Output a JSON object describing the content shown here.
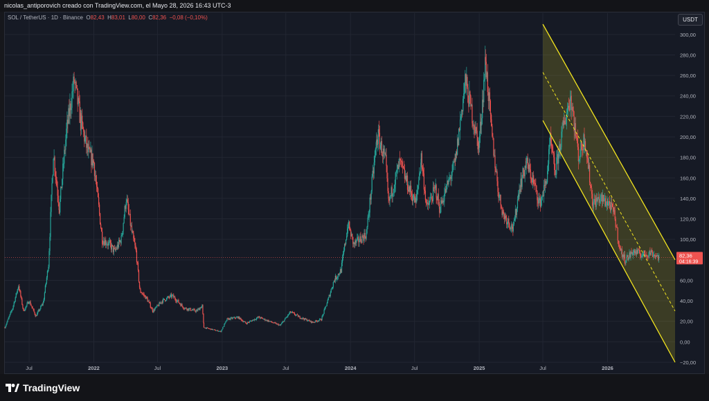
{
  "header": {
    "title": "nicolas_antiporovich creado con TradingView.com, el Mayo 28, 2026 16:43 UTC-3"
  },
  "legend": {
    "symbol": "SOL / TetherUS · 1D · Binance",
    "open_label": "O",
    "open": "82,43",
    "high_label": "H",
    "high": "83,01",
    "low_label": "L",
    "low": "80,00",
    "close_label": "C",
    "close": "82,36",
    "change": "−0,08 (−0,10%)"
  },
  "currency_button": "USDT",
  "last_price": {
    "value": "82,36",
    "countdown": "04:16:39"
  },
  "footer": {
    "brand": "TradingView"
  },
  "colors": {
    "up": "#26a69a",
    "down": "#ef5350",
    "channel": "#f2e41f",
    "background": "#161a25",
    "grid": "#222632",
    "price_line": "#ef5350"
  },
  "chart_data": {
    "type": "candlestick",
    "title": "",
    "xlabel": "",
    "ylabel": "",
    "x_range": [
      "2021-04-23",
      "2026-07-12"
    ],
    "ylim": [
      -20,
      310
    ],
    "grid": true,
    "y_ticks": [
      -20,
      0,
      20,
      40,
      60,
      80,
      100,
      120,
      140,
      160,
      180,
      200,
      220,
      240,
      260,
      280,
      300
    ],
    "y_tick_labels": [
      "−20,00",
      "0,00",
      "20,00",
      "40,00",
      "60,00",
      "80,00",
      "100,00",
      "120,00",
      "140,00",
      "160,00",
      "180,00",
      "200,00",
      "220,00",
      "240,00",
      "260,00",
      "280,00",
      "300,00"
    ],
    "x_ticks": [
      {
        "date": "2021-07-01",
        "label": "Jul",
        "bold": false
      },
      {
        "date": "2022-01-01",
        "label": "2022",
        "bold": true
      },
      {
        "date": "2022-07-01",
        "label": "Jul",
        "bold": false
      },
      {
        "date": "2023-01-01",
        "label": "2023",
        "bold": true
      },
      {
        "date": "2023-07-01",
        "label": "Jul",
        "bold": false
      },
      {
        "date": "2024-01-01",
        "label": "2024",
        "bold": true
      },
      {
        "date": "2024-07-01",
        "label": "Jul",
        "bold": false
      },
      {
        "date": "2025-01-01",
        "label": "2025",
        "bold": true
      },
      {
        "date": "2025-07-01",
        "label": "Jul",
        "bold": false
      },
      {
        "date": "2026-01-01",
        "label": "2026",
        "bold": true
      }
    ],
    "price_path": [
      [
        "2021-04-23",
        14
      ],
      [
        "2021-05-15",
        33
      ],
      [
        "2021-06-01",
        55
      ],
      [
        "2021-06-15",
        30
      ],
      [
        "2021-07-01",
        40
      ],
      [
        "2021-07-20",
        25
      ],
      [
        "2021-08-10",
        38
      ],
      [
        "2021-08-25",
        75
      ],
      [
        "2021-09-08",
        185
      ],
      [
        "2021-09-25",
        130
      ],
      [
        "2021-10-15",
        205
      ],
      [
        "2021-11-06",
        255
      ],
      [
        "2021-11-25",
        215
      ],
      [
        "2021-12-15",
        185
      ],
      [
        "2022-01-01",
        175
      ],
      [
        "2022-01-25",
        100
      ],
      [
        "2022-02-15",
        95
      ],
      [
        "2022-03-01",
        88
      ],
      [
        "2022-03-20",
        100
      ],
      [
        "2022-04-03",
        140
      ],
      [
        "2022-04-20",
        105
      ],
      [
        "2022-05-01",
        88
      ],
      [
        "2022-05-12",
        50
      ],
      [
        "2022-06-01",
        42
      ],
      [
        "2022-06-18",
        30
      ],
      [
        "2022-07-15",
        40
      ],
      [
        "2022-08-12",
        45
      ],
      [
        "2022-09-15",
        33
      ],
      [
        "2022-10-20",
        30
      ],
      [
        "2022-11-05",
        35
      ],
      [
        "2022-11-10",
        14
      ],
      [
        "2022-12-28",
        10
      ],
      [
        "2023-01-15",
        22
      ],
      [
        "2023-02-15",
        24
      ],
      [
        "2023-03-10",
        18
      ],
      [
        "2023-04-15",
        24
      ],
      [
        "2023-05-15",
        20
      ],
      [
        "2023-06-15",
        16
      ],
      [
        "2023-07-14",
        29
      ],
      [
        "2023-08-10",
        24
      ],
      [
        "2023-09-15",
        19
      ],
      [
        "2023-10-10",
        22
      ],
      [
        "2023-10-30",
        42
      ],
      [
        "2023-11-15",
        60
      ],
      [
        "2023-12-05",
        70
      ],
      [
        "2023-12-25",
        115
      ],
      [
        "2024-01-10",
        95
      ],
      [
        "2024-02-15",
        105
      ],
      [
        "2024-03-15",
        195
      ],
      [
        "2024-03-20",
        200
      ],
      [
        "2024-04-10",
        175
      ],
      [
        "2024-04-18",
        135
      ],
      [
        "2024-05-20",
        175
      ],
      [
        "2024-06-15",
        150
      ],
      [
        "2024-07-05",
        135
      ],
      [
        "2024-07-20",
        180
      ],
      [
        "2024-08-05",
        130
      ],
      [
        "2024-08-30",
        150
      ],
      [
        "2024-09-10",
        130
      ],
      [
        "2024-10-25",
        175
      ],
      [
        "2024-11-22",
        255
      ],
      [
        "2024-12-10",
        225
      ],
      [
        "2024-12-31",
        190
      ],
      [
        "2025-01-19",
        275
      ],
      [
        "2025-02-05",
        205
      ],
      [
        "2025-02-25",
        145
      ],
      [
        "2025-03-10",
        125
      ],
      [
        "2025-04-08",
        110
      ],
      [
        "2025-04-25",
        150
      ],
      [
        "2025-05-15",
        175
      ],
      [
        "2025-06-05",
        155
      ],
      [
        "2025-06-22",
        135
      ],
      [
        "2025-07-10",
        155
      ],
      [
        "2025-07-22",
        195
      ],
      [
        "2025-08-05",
        165
      ],
      [
        "2025-08-28",
        210
      ],
      [
        "2025-09-18",
        240
      ],
      [
        "2025-10-11",
        180
      ],
      [
        "2025-10-28",
        200
      ],
      [
        "2025-11-20",
        135
      ],
      [
        "2025-12-10",
        140
      ],
      [
        "2026-01-05",
        135
      ],
      [
        "2026-01-20",
        125
      ],
      [
        "2026-02-05",
        90
      ],
      [
        "2026-02-20",
        80
      ],
      [
        "2026-03-15",
        88
      ],
      [
        "2026-04-10",
        85
      ],
      [
        "2026-05-05",
        87
      ],
      [
        "2026-05-28",
        82.36
      ]
    ],
    "last_price": 82.36,
    "drawing": {
      "type": "parallel_channel",
      "upper": [
        [
          "2025-07-01",
          310
        ],
        [
          "2026-07-12",
          80
        ]
      ],
      "middle": [
        [
          "2025-07-01",
          263
        ],
        [
          "2026-07-12",
          30
        ]
      ],
      "lower": [
        [
          "2025-07-01",
          216
        ],
        [
          "2026-07-12",
          -20
        ]
      ]
    }
  }
}
